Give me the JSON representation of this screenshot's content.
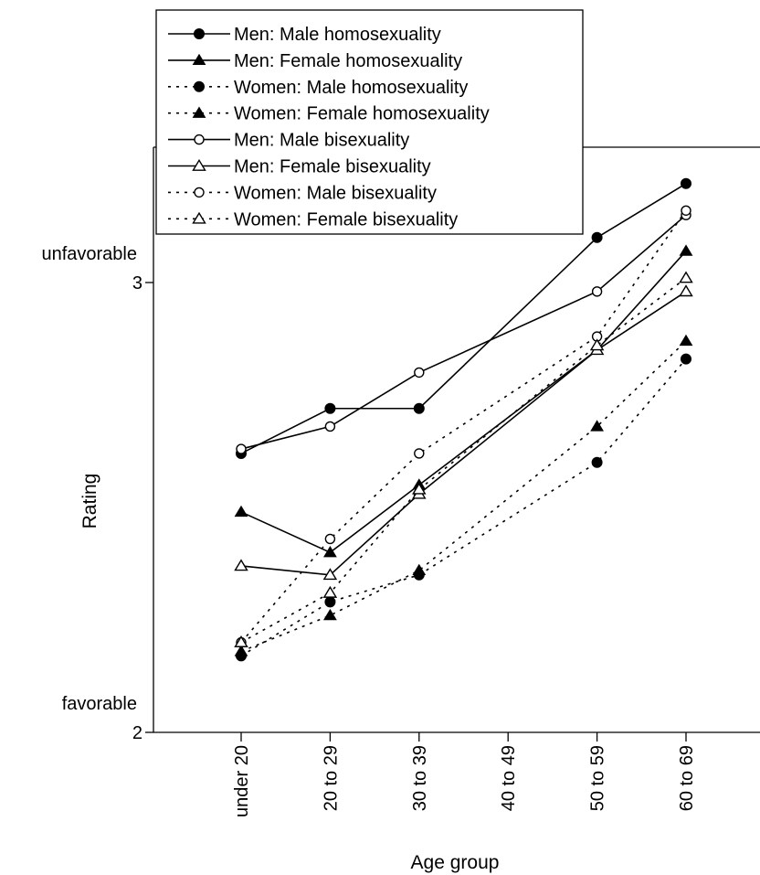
{
  "chart_data": {
    "type": "line",
    "xlabel": "Age group",
    "ylabel": "Rating",
    "categories": [
      "under 20",
      "20 to 29",
      "30 to 39",
      "40 to 49",
      "50 to 59",
      "60 to 69"
    ],
    "ylim": [
      2,
      3.3
    ],
    "yticks": [
      2,
      3
    ],
    "ytick_annotations": [
      {
        "value": 2,
        "text": "favorable"
      },
      {
        "value": 3,
        "text": "unfavorable"
      }
    ],
    "grid": false,
    "legend_position": "top-left",
    "series": [
      {
        "name": "Men: Male homosexuality",
        "marker": "filled-circle",
        "dash": "solid",
        "values": [
          2.62,
          2.72,
          2.72,
          null,
          3.1,
          3.22
        ]
      },
      {
        "name": "Men: Female homosexuality",
        "marker": "filled-triangle",
        "dash": "solid",
        "values": [
          2.49,
          2.4,
          2.55,
          null,
          2.85,
          3.07
        ]
      },
      {
        "name": "Women: Male homosexuality",
        "marker": "filled-circle",
        "dash": "dotted",
        "values": [
          2.17,
          2.29,
          2.35,
          null,
          2.6,
          2.83
        ]
      },
      {
        "name": "Women: Female homosexuality",
        "marker": "filled-triangle",
        "dash": "dotted",
        "values": [
          2.18,
          2.26,
          2.36,
          null,
          2.68,
          2.87
        ]
      },
      {
        "name": "Men: Male bisexuality",
        "marker": "open-circle",
        "dash": "solid",
        "values": [
          2.63,
          2.68,
          2.8,
          null,
          2.98,
          3.15
        ]
      },
      {
        "name": "Men: Female bisexuality",
        "marker": "open-triangle",
        "dash": "solid",
        "values": [
          2.37,
          2.35,
          2.53,
          null,
          2.85,
          2.98
        ]
      },
      {
        "name": "Women: Male bisexuality",
        "marker": "open-circle",
        "dash": "dotted",
        "values": [
          2.2,
          2.43,
          2.62,
          null,
          2.88,
          3.16
        ]
      },
      {
        "name": "Women: Female bisexuality",
        "marker": "open-triangle",
        "dash": "dotted",
        "values": [
          2.2,
          2.31,
          2.54,
          null,
          2.86,
          3.01
        ]
      }
    ]
  }
}
